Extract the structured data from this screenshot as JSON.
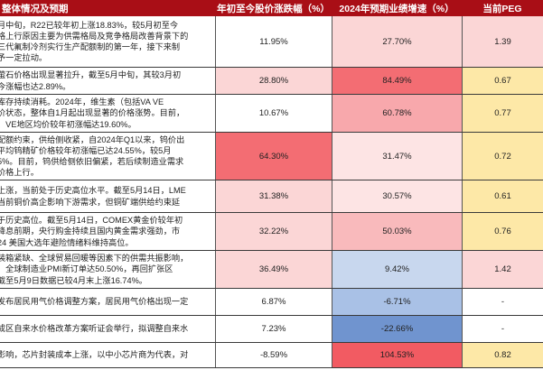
{
  "header": {
    "col0": "整体情况及预期",
    "col1": "年初至今股价涨跌幅（%）",
    "col2": "2024年预期业绩增速（%）",
    "col3": "当前PEG"
  },
  "rows": [
    {
      "text": "月中旬，R22已较年初上涨18.83%，较5月初至今\n格上行原因主要为供需格局及竞争格局改善背景下的\n三代氟制冷剂实行生产配额制的第一年，接下来制\n予一定拉动。",
      "change": "11.95%",
      "growth": "27.70%",
      "peg": "1.39",
      "growth_bg": "#fbd6d6",
      "peg_bg": "#fbd6d6"
    },
    {
      "text": "萤石价格出现显著拉升，截至5月中旬，其较3月初\n今涨幅也达2.89%。",
      "change": "28.80%",
      "growth": "84.49%",
      "peg": "0.67",
      "change_bg": "#fbd6d6",
      "growth_bg": "#f36d73",
      "peg_bg": "#fde8a7"
    },
    {
      "text": "库存持续消耗。2024年，维生素（包括VA VE\n价状态，整体自1月起出现显著的价格涨势。目前，\n、VE地区均价较年初涨幅达19.60%。",
      "change": "10.67%",
      "growth": "60.78%",
      "peg": "0.77",
      "growth_bg": "#f8a8ac",
      "peg_bg": "#fde8a7"
    },
    {
      "text": "配额约束，供给侧收紧，自2024年Q1以来，钨价出\n平均钨精矿价格较年初涨幅已达24.55%，较5月\n5%。目前，钨供给侧依旧偏紧，若后续制造业需求\n价格上行。",
      "change": "64.30%",
      "growth": "31.47%",
      "peg": "0.72",
      "change_bg": "#f36d73",
      "growth_bg": "#fde4e4",
      "peg_bg": "#fde8a7"
    },
    {
      "text": "上涨，当前处于历史高位水平。截至5月14日，LME\n当前铜价高企影响下游需求，但铜矿端供给约束延",
      "change": "31.38%",
      "growth": "30.57%",
      "peg": "0.61",
      "change_bg": "#fbd6d6",
      "growth_bg": "#fde4e4",
      "peg_bg": "#fde8a7"
    },
    {
      "text": "于历史高位。截至5月14日，COMEX黄金价较年初\n降息前期，央行购金持续且国内黄金需求强劲，市\n24 美国大选年避险情绪料维持高位。",
      "change": "32.22%",
      "growth": "50.03%",
      "peg": "0.76",
      "change_bg": "#fbd6d6",
      "growth_bg": "#f9babc",
      "peg_bg": "#fde8a7"
    },
    {
      "text": "装箱紧缺、全球贸易回暖等因素下的供需共振影响，\n　全球制造业PMI新订单达50.50%，再回扩张区\n截至5月9日数据已较4月末上涨16.74%。",
      "change": "36.49%",
      "growth": "9.42%",
      "peg": "1.42",
      "change_bg": "#fbd6d6",
      "growth_bg": "#c8d7ee",
      "peg_bg": "#fbd6d6"
    },
    {
      "text": "发布居民用气价格调整方案，居民用气价格出现一定",
      "change": "6.87%",
      "growth": "-6.71%",
      "peg": "-",
      "growth_bg": "#a9c1e6"
    },
    {
      "text": "成区自来水价格改革方案听证会举行，拟调整自来水",
      "change": "7.23%",
      "growth": "-22.66%",
      "peg": "-",
      "growth_bg": "#7094cf"
    },
    {
      "text": "影响，芯片封装成本上涨，以中小芯片商为代表，对",
      "change": "-8.59%",
      "growth": "104.53%",
      "peg": "0.82",
      "growth_bg": "#f25b62",
      "peg_bg": "#fde8a7"
    }
  ]
}
